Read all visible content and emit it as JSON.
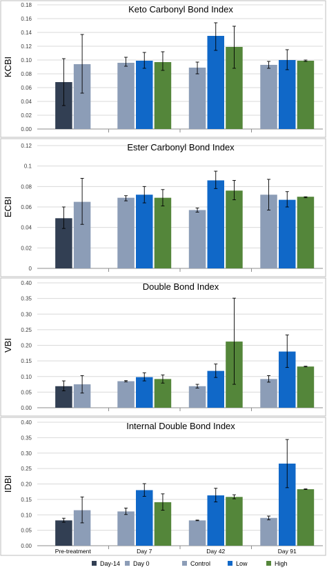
{
  "figure": {
    "categories": [
      "Pre-treatment",
      "Day 7",
      "Day 42",
      "Day 91"
    ],
    "legend": [
      {
        "name": "Day-14",
        "color": "#323f53"
      },
      {
        "name": "Day 0",
        "color": "#8c9db7"
      },
      {
        "name": "Control",
        "color": "#8c9db7"
      },
      {
        "name": "Low",
        "color": "#1068c8"
      },
      {
        "name": "High",
        "color": "#54863a"
      }
    ],
    "legend_placement": "bottom"
  },
  "chart_data": [
    {
      "type": "bar",
      "title": "Keto Carbonyl Bond Index",
      "ylabel": "KCBI",
      "ylim": [
        0,
        0.18
      ],
      "yticks": [
        "0.00",
        "0.02",
        "0.04",
        "0.06",
        "0.08",
        "0.10",
        "0.12",
        "0.14",
        "0.16",
        "0.18"
      ],
      "grid": true,
      "groups": [
        {
          "category": "Pre-treatment",
          "bars": [
            {
              "series": "Day-14",
              "value": 0.068,
              "err_low": 0.034,
              "err_high": 0.102
            },
            {
              "series": "Day 0",
              "value": 0.094,
              "err_low": 0.052,
              "err_high": 0.137
            }
          ]
        },
        {
          "category": "Day 7",
          "bars": [
            {
              "series": "Control",
              "value": 0.096,
              "err_low": 0.091,
              "err_high": 0.104
            },
            {
              "series": "Low",
              "value": 0.099,
              "err_low": 0.088,
              "err_high": 0.111
            },
            {
              "series": "High",
              "value": 0.097,
              "err_low": 0.085,
              "err_high": 0.112
            }
          ]
        },
        {
          "category": "Day 42",
          "bars": [
            {
              "series": "Control",
              "value": 0.089,
              "err_low": 0.08,
              "err_high": 0.097
            },
            {
              "series": "Low",
              "value": 0.135,
              "err_low": 0.114,
              "err_high": 0.154
            },
            {
              "series": "High",
              "value": 0.119,
              "err_low": 0.088,
              "err_high": 0.149
            }
          ]
        },
        {
          "category": "Day 91",
          "bars": [
            {
              "series": "Control",
              "value": 0.093,
              "err_low": 0.088,
              "err_high": 0.098
            },
            {
              "series": "Low",
              "value": 0.1,
              "err_low": 0.086,
              "err_high": 0.115
            },
            {
              "series": "High",
              "value": 0.099,
              "err_low": 0.098,
              "err_high": 0.1
            }
          ]
        }
      ]
    },
    {
      "type": "bar",
      "title": "Ester Carbonyl Bond Index",
      "ylabel": "ECBI",
      "ylim": [
        0,
        0.12
      ],
      "yticks": [
        "0",
        "0.02",
        "0.04",
        "0.06",
        "0.08",
        "0.1",
        "0.12"
      ],
      "grid": true,
      "groups": [
        {
          "category": "Pre-treatment",
          "bars": [
            {
              "series": "Day-14",
              "value": 0.049,
              "err_low": 0.039,
              "err_high": 0.06
            },
            {
              "series": "Day 0",
              "value": 0.065,
              "err_low": 0.043,
              "err_high": 0.088
            }
          ]
        },
        {
          "category": "Day 7",
          "bars": [
            {
              "series": "Control",
              "value": 0.069,
              "err_low": 0.066,
              "err_high": 0.071
            },
            {
              "series": "Low",
              "value": 0.072,
              "err_low": 0.064,
              "err_high": 0.08
            },
            {
              "series": "High",
              "value": 0.069,
              "err_low": 0.061,
              "err_high": 0.077
            }
          ]
        },
        {
          "category": "Day 42",
          "bars": [
            {
              "series": "Control",
              "value": 0.057,
              "err_low": 0.055,
              "err_high": 0.059
            },
            {
              "series": "Low",
              "value": 0.086,
              "err_low": 0.078,
              "err_high": 0.095
            },
            {
              "series": "High",
              "value": 0.076,
              "err_low": 0.067,
              "err_high": 0.086
            }
          ]
        },
        {
          "category": "Day 91",
          "bars": [
            {
              "series": "Control",
              "value": 0.072,
              "err_low": 0.057,
              "err_high": 0.087
            },
            {
              "series": "Low",
              "value": 0.067,
              "err_low": 0.06,
              "err_high": 0.075
            },
            {
              "series": "High",
              "value": 0.07,
              "err_low": 0.069,
              "err_high": 0.07
            }
          ]
        }
      ]
    },
    {
      "type": "bar",
      "title": "Double Bond Index",
      "ylabel": "VBI",
      "ylim": [
        0,
        0.4
      ],
      "yticks": [
        "0.00",
        "0.05",
        "0.10",
        "0.15",
        "0.20",
        "0.25",
        "0.30",
        "0.35",
        "0.40"
      ],
      "grid": true,
      "groups": [
        {
          "category": "Pre-treatment",
          "bars": [
            {
              "series": "Day-14",
              "value": 0.069,
              "err_low": 0.054,
              "err_high": 0.086
            },
            {
              "series": "Day 0",
              "value": 0.075,
              "err_low": 0.047,
              "err_high": 0.103
            }
          ]
        },
        {
          "category": "Day 7",
          "bars": [
            {
              "series": "Control",
              "value": 0.085,
              "err_low": 0.083,
              "err_high": 0.087
            },
            {
              "series": "Low",
              "value": 0.098,
              "err_low": 0.086,
              "err_high": 0.112
            },
            {
              "series": "High",
              "value": 0.092,
              "err_low": 0.079,
              "err_high": 0.105
            }
          ]
        },
        {
          "category": "Day 42",
          "bars": [
            {
              "series": "Control",
              "value": 0.069,
              "err_low": 0.063,
              "err_high": 0.075
            },
            {
              "series": "Low",
              "value": 0.118,
              "err_low": 0.097,
              "err_high": 0.14
            },
            {
              "series": "High",
              "value": 0.212,
              "err_low": 0.075,
              "err_high": 0.351
            }
          ]
        },
        {
          "category": "Day 91",
          "bars": [
            {
              "series": "Control",
              "value": 0.092,
              "err_low": 0.082,
              "err_high": 0.103
            },
            {
              "series": "Low",
              "value": 0.18,
              "err_low": 0.129,
              "err_high": 0.233
            },
            {
              "series": "High",
              "value": 0.132,
              "err_low": 0.131,
              "err_high": 0.133
            }
          ]
        }
      ]
    },
    {
      "type": "bar",
      "title": "Internal Double Bond Index",
      "ylabel": "IDBI",
      "ylim": [
        0,
        0.4
      ],
      "yticks": [
        "0.00",
        "0.05",
        "0.10",
        "0.15",
        "0.20",
        "0.25",
        "0.30",
        "0.35",
        "0.40"
      ],
      "grid": true,
      "groups": [
        {
          "category": "Pre-treatment",
          "bars": [
            {
              "series": "Day-14",
              "value": 0.082,
              "err_low": 0.076,
              "err_high": 0.089
            },
            {
              "series": "Day 0",
              "value": 0.115,
              "err_low": 0.074,
              "err_high": 0.158
            }
          ]
        },
        {
          "category": "Day 7",
          "bars": [
            {
              "series": "Control",
              "value": 0.111,
              "err_low": 0.101,
              "err_high": 0.122
            },
            {
              "series": "Low",
              "value": 0.18,
              "err_low": 0.16,
              "err_high": 0.201
            },
            {
              "series": "High",
              "value": 0.141,
              "err_low": 0.115,
              "err_high": 0.168
            }
          ]
        },
        {
          "category": "Day 42",
          "bars": [
            {
              "series": "Control",
              "value": 0.082,
              "err_low": 0.081,
              "err_high": 0.083
            },
            {
              "series": "Low",
              "value": 0.163,
              "err_low": 0.142,
              "err_high": 0.186
            },
            {
              "series": "High",
              "value": 0.158,
              "err_low": 0.152,
              "err_high": 0.165
            }
          ]
        },
        {
          "category": "Day 91",
          "bars": [
            {
              "series": "Control",
              "value": 0.09,
              "err_low": 0.084,
              "err_high": 0.096
            },
            {
              "series": "Low",
              "value": 0.266,
              "err_low": 0.188,
              "err_high": 0.344
            },
            {
              "series": "High",
              "value": 0.183,
              "err_low": 0.182,
              "err_high": 0.184
            }
          ]
        }
      ]
    }
  ]
}
